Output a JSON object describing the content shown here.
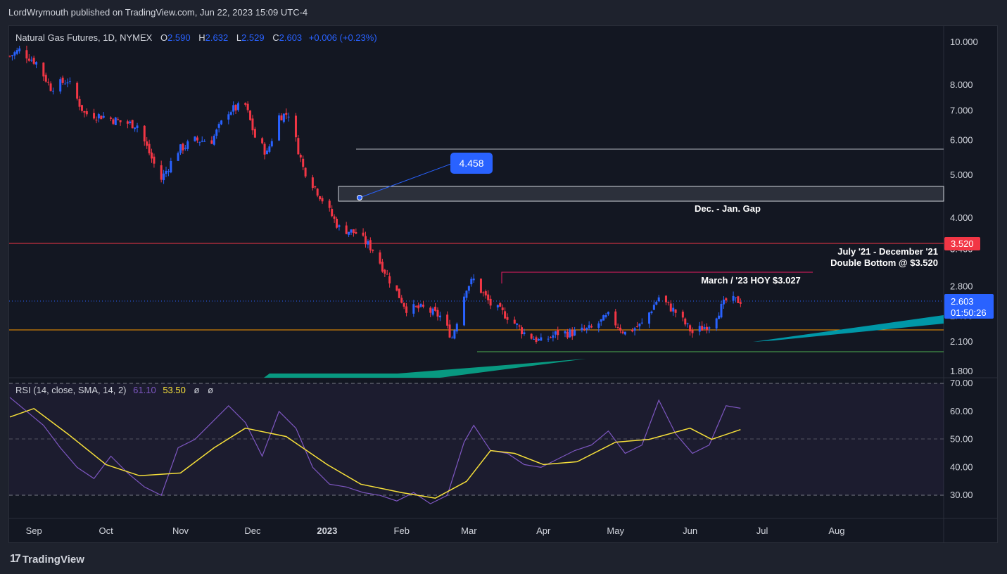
{
  "header": {
    "published": "LordWrymouth published on TradingView.com, Jun 22, 2023 15:09 UTC-4"
  },
  "legend": {
    "symbol": "Natural Gas Futures, 1D, NYMEX",
    "o_label": "O",
    "o": "2.590",
    "h_label": "H",
    "h": "2.632",
    "l_label": "L",
    "l": "2.529",
    "c_label": "C",
    "c": "2.603",
    "change": "+0.006 (+0.23%)"
  },
  "rsi_legend": {
    "label": "RSI (14, close, SMA, 14, 2)",
    "rsi": "61.10",
    "sma": "53.50",
    "extra1": "ø",
    "extra2": "ø"
  },
  "price_axis": [
    "10.000",
    "8.000",
    "7.000",
    "6.000",
    "5.000",
    "4.000",
    "3.400",
    "2.800",
    "2.400",
    "2.100",
    "1.800"
  ],
  "rsi_axis": [
    "70.00",
    "60.00",
    "50.00",
    "40.00",
    "30.00"
  ],
  "time_axis": [
    "Sep",
    "Oct",
    "Nov",
    "Dec",
    "2023",
    "Feb",
    "Mar",
    "Apr",
    "May",
    "Jun",
    "Jul",
    "Aug"
  ],
  "price_badge": {
    "value": "2.603",
    "countdown": "01:50:26"
  },
  "level_badge": "3.520",
  "callout": "4.458",
  "annotations": {
    "gap": "Dec. - Jan. Gap",
    "double_bottom_1": "July '21 - December '21",
    "double_bottom_2": "Double Bottom @ $3.520",
    "hoy": "March / '23 HOY $3.027"
  },
  "brand": "TradingView",
  "colors": {
    "up": "#2962ff",
    "down": "#f23645",
    "rsi": "#7e57c2",
    "rsi_sma": "#f7e03a",
    "support": "#ff9800",
    "resistance": "#f23645",
    "teal": "#0097a7",
    "green": "#089981"
  },
  "chart_data": [
    {
      "type": "candlestick",
      "title": "Natural Gas Futures, 1D, NYMEX",
      "scale": "log",
      "ylim": [
        1.75,
        10.5
      ],
      "x_range": [
        "2022-08-22",
        "2023-08-30"
      ],
      "levels": [
        {
          "name": "resistance",
          "value": 3.52
        },
        {
          "name": "HOY",
          "value": 3.027
        },
        {
          "name": "support",
          "value": 2.3
        },
        {
          "name": "low",
          "value": 2.03
        },
        {
          "name": "gap_top",
          "value": 4.7
        },
        {
          "name": "gap_bottom",
          "value": 4.4
        },
        {
          "name": "upper",
          "value": 5.8
        }
      ],
      "close_path": [
        [
          "2022-08-22",
          9.3
        ],
        [
          "2022-08-26",
          9.6
        ],
        [
          "2022-09-02",
          9.0
        ],
        [
          "2022-09-08",
          7.9
        ],
        [
          "2022-09-15",
          8.2
        ],
        [
          "2022-09-22",
          6.9
        ],
        [
          "2022-09-30",
          6.8
        ],
        [
          "2022-10-07",
          6.6
        ],
        [
          "2022-10-14",
          6.5
        ],
        [
          "2022-10-21",
          5.3
        ],
        [
          "2022-10-24",
          4.9
        ],
        [
          "2022-10-31",
          5.7
        ],
        [
          "2022-11-07",
          6.0
        ],
        [
          "2022-11-14",
          6.0
        ],
        [
          "2022-11-21",
          7.0
        ],
        [
          "2022-11-28",
          7.2
        ],
        [
          "2022-12-02",
          6.1
        ],
        [
          "2022-12-07",
          5.6
        ],
        [
          "2022-12-12",
          6.8
        ],
        [
          "2022-12-16",
          6.9
        ],
        [
          "2022-12-22",
          5.2
        ],
        [
          "2022-12-29",
          4.5
        ],
        [
          "2023-01-06",
          3.8
        ],
        [
          "2023-01-13",
          3.7
        ],
        [
          "2023-01-20",
          3.4
        ],
        [
          "2023-01-27",
          2.9
        ],
        [
          "2023-02-03",
          2.5
        ],
        [
          "2023-02-10",
          2.5
        ],
        [
          "2023-02-17",
          2.4
        ],
        [
          "2023-02-22",
          2.15
        ],
        [
          "2023-02-28",
          2.8
        ],
        [
          "2023-03-03",
          2.9
        ],
        [
          "2023-03-10",
          2.55
        ],
        [
          "2023-03-17",
          2.4
        ],
        [
          "2023-03-24",
          2.2
        ],
        [
          "2023-03-31",
          2.1
        ],
        [
          "2023-04-07",
          2.2
        ],
        [
          "2023-04-14",
          2.2
        ],
        [
          "2023-04-21",
          2.25
        ],
        [
          "2023-04-28",
          2.4
        ],
        [
          "2023-05-05",
          2.2
        ],
        [
          "2023-05-12",
          2.3
        ],
        [
          "2023-05-19",
          2.65
        ],
        [
          "2023-05-26",
          2.45
        ],
        [
          "2023-06-02",
          2.2
        ],
        [
          "2023-06-09",
          2.3
        ],
        [
          "2023-06-16",
          2.6
        ],
        [
          "2023-06-22",
          2.603
        ]
      ]
    },
    {
      "type": "line",
      "title": "RSI (14, close, SMA, 14, 2)",
      "ylim": [
        25,
        72
      ],
      "series": [
        {
          "name": "RSI",
          "points": [
            [
              "2022-08-22",
              65
            ],
            [
              "2022-08-29",
              60
            ],
            [
              "2022-09-05",
              55
            ],
            [
              "2022-09-12",
              47
            ],
            [
              "2022-09-19",
              40
            ],
            [
              "2022-09-26",
              36
            ],
            [
              "2022-10-03",
              44
            ],
            [
              "2022-10-10",
              38
            ],
            [
              "2022-10-17",
              33
            ],
            [
              "2022-10-24",
              30
            ],
            [
              "2022-10-31",
              47
            ],
            [
              "2022-11-07",
              50
            ],
            [
              "2022-11-14",
              56
            ],
            [
              "2022-11-21",
              62
            ],
            [
              "2022-11-28",
              56
            ],
            [
              "2022-12-05",
              44
            ],
            [
              "2022-12-12",
              60
            ],
            [
              "2022-12-19",
              54
            ],
            [
              "2022-12-26",
              40
            ],
            [
              "2023-01-02",
              34
            ],
            [
              "2023-01-09",
              33
            ],
            [
              "2023-01-16",
              31
            ],
            [
              "2023-01-23",
              30
            ],
            [
              "2023-01-30",
              28
            ],
            [
              "2023-02-06",
              31
            ],
            [
              "2023-02-13",
              27
            ],
            [
              "2023-02-20",
              30
            ],
            [
              "2023-02-27",
              49
            ],
            [
              "2023-03-03",
              55
            ],
            [
              "2023-03-10",
              46
            ],
            [
              "2023-03-17",
              45
            ],
            [
              "2023-03-24",
              41
            ],
            [
              "2023-03-31",
              40
            ],
            [
              "2023-04-07",
              43
            ],
            [
              "2023-04-14",
              46
            ],
            [
              "2023-04-21",
              48
            ],
            [
              "2023-04-28",
              53
            ],
            [
              "2023-05-05",
              45
            ],
            [
              "2023-05-12",
              48
            ],
            [
              "2023-05-19",
              64
            ],
            [
              "2023-05-26",
              52
            ],
            [
              "2023-06-02",
              45
            ],
            [
              "2023-06-09",
              48
            ],
            [
              "2023-06-16",
              62
            ],
            [
              "2023-06-22",
              61.1
            ]
          ]
        },
        {
          "name": "SMA",
          "points": [
            [
              "2022-08-22",
              58
            ],
            [
              "2022-09-01",
              61
            ],
            [
              "2022-09-15",
              52
            ],
            [
              "2022-10-01",
              41
            ],
            [
              "2022-10-15",
              37
            ],
            [
              "2022-11-01",
              38
            ],
            [
              "2022-11-15",
              47
            ],
            [
              "2022-11-28",
              54
            ],
            [
              "2022-12-15",
              51
            ],
            [
              "2023-01-01",
              41
            ],
            [
              "2023-01-15",
              34
            ],
            [
              "2023-02-01",
              31
            ],
            [
              "2023-02-15",
              29
            ],
            [
              "2023-02-28",
              35
            ],
            [
              "2023-03-10",
              46
            ],
            [
              "2023-03-20",
              45
            ],
            [
              "2023-04-01",
              41
            ],
            [
              "2023-04-15",
              42
            ],
            [
              "2023-05-01",
              49
            ],
            [
              "2023-05-15",
              50
            ],
            [
              "2023-06-01",
              54
            ],
            [
              "2023-06-10",
              50
            ],
            [
              "2023-06-22",
              53.5
            ]
          ]
        }
      ]
    }
  ]
}
